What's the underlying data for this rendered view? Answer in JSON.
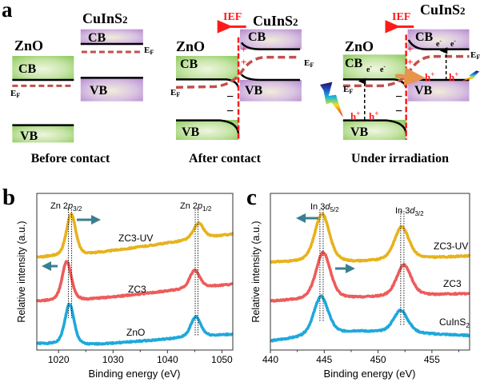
{
  "panel_a": {
    "label": "a",
    "cb": "CB",
    "vb": "VB",
    "ef": {
      "main": "E",
      "sub": "F"
    },
    "zno": "ZnO",
    "cuins2": {
      "main": "CuInS",
      "sub": "2"
    },
    "ief": "IEF",
    "plus": "+",
    "minus": "−",
    "electron": {
      "main": "e",
      "sup": "-"
    },
    "hole": {
      "main": "h",
      "sup": "+"
    },
    "captions": [
      "Before contact",
      "After contact",
      "Under irradiation"
    ],
    "colors": {
      "ief": "#ff1a1a",
      "fermi": "#c0504d",
      "zno_band": "#9fd47a",
      "cuins2_band": "#c39bd6"
    }
  },
  "chart_data": [
    {
      "panel_label": "b",
      "type": "line",
      "xlabel": "Binding energy (eV)",
      "ylabel": "Relative intensity (a.u.)",
      "xlim": [
        1016,
        1052
      ],
      "ylim": [
        0,
        10
      ],
      "xticks": [
        1020,
        1030,
        1040,
        1050
      ],
      "xtick_labels": [
        "1020",
        "1030",
        "1040",
        "1050"
      ],
      "yticks": [],
      "grid": false,
      "annotations": [
        {
          "main": "Zn 2",
          "italic": "p",
          "sub": "3/2"
        },
        {
          "main": "Zn 2",
          "italic": "p",
          "sub": "1/2"
        }
      ],
      "reference_lines_eV": [
        1021.8,
        1022.4,
        1045.1,
        1045.6
      ],
      "series": [
        {
          "name": "ZnO",
          "color": "#1fa8dc",
          "baseline": [
            [
              1016,
              0.4
            ],
            [
              1025,
              0.3
            ],
            [
              1052,
              1.0
            ]
          ],
          "peaks": [
            {
              "center": 1022.0,
              "height": 2.6,
              "fwhm": 2.0
            },
            {
              "center": 1045.2,
              "height": 1.3,
              "fwhm": 2.2
            }
          ]
        },
        {
          "name": "ZC3",
          "color": "#ee5b5b",
          "baseline": [
            [
              1016,
              3.1
            ],
            [
              1025,
              3.2
            ],
            [
              1052,
              4.2
            ]
          ],
          "peaks": [
            {
              "center": 1021.5,
              "height": 2.5,
              "fwhm": 2.0
            },
            {
              "center": 1045.0,
              "height": 1.15,
              "fwhm": 2.2
            }
          ]
        },
        {
          "name": "ZC3-UV",
          "color": "#e8b21c",
          "baseline": [
            [
              1016,
              5.9
            ],
            [
              1025,
              6.1
            ],
            [
              1052,
              7.4
            ]
          ],
          "peaks": [
            {
              "center": 1022.3,
              "height": 2.65,
              "fwhm": 2.0
            },
            {
              "center": 1045.7,
              "height": 1.0,
              "fwhm": 2.2
            }
          ]
        }
      ]
    },
    {
      "panel_label": "c",
      "type": "line",
      "xlabel": "Binding energy (eV)",
      "ylabel": "Relative intensity (a.u.)",
      "xlim": [
        440,
        458.5
      ],
      "ylim": [
        0,
        10
      ],
      "xticks": [
        440,
        445,
        450,
        455
      ],
      "xtick_labels": [
        "440",
        "445",
        "450",
        "455"
      ],
      "yticks": [],
      "grid": false,
      "annotations": [
        {
          "main": "In 3",
          "italic": "d",
          "sub": "5/2"
        },
        {
          "main": "In 3",
          "italic": "d",
          "sub": "3/2"
        }
      ],
      "reference_lines_eV": [
        444.6,
        444.9,
        452.1,
        452.4
      ],
      "series": [
        {
          "name": "CuInS2",
          "label": {
            "main": "CuInS",
            "sub": "2"
          },
          "color": "#1fa8dc",
          "baseline": [
            [
              440,
              0.56
            ],
            [
              448,
              1.17
            ],
            [
              458.5,
              0.92
            ]
          ],
          "peaks": [
            {
              "center": 444.7,
              "height": 2.5,
              "fwhm": 1.6
            },
            {
              "center": 452.1,
              "height": 1.45,
              "fwhm": 1.6
            }
          ]
        },
        {
          "name": "ZC3",
          "color": "#ee5b5b",
          "baseline": [
            [
              440,
              3.1
            ],
            [
              448,
              3.3
            ],
            [
              458.5,
              3.6
            ]
          ],
          "peaks": [
            {
              "center": 444.9,
              "height": 3.0,
              "fwhm": 1.6
            },
            {
              "center": 452.4,
              "height": 2.0,
              "fwhm": 1.6
            }
          ]
        },
        {
          "name": "ZC3-UV",
          "color": "#e8b21c",
          "baseline": [
            [
              440,
              5.6
            ],
            [
              448,
              5.6
            ],
            [
              458.5,
              6.0
            ]
          ],
          "peaks": [
            {
              "center": 444.8,
              "height": 3.1,
              "fwhm": 1.6
            },
            {
              "center": 452.2,
              "height": 2.1,
              "fwhm": 1.6
            }
          ]
        }
      ]
    }
  ]
}
